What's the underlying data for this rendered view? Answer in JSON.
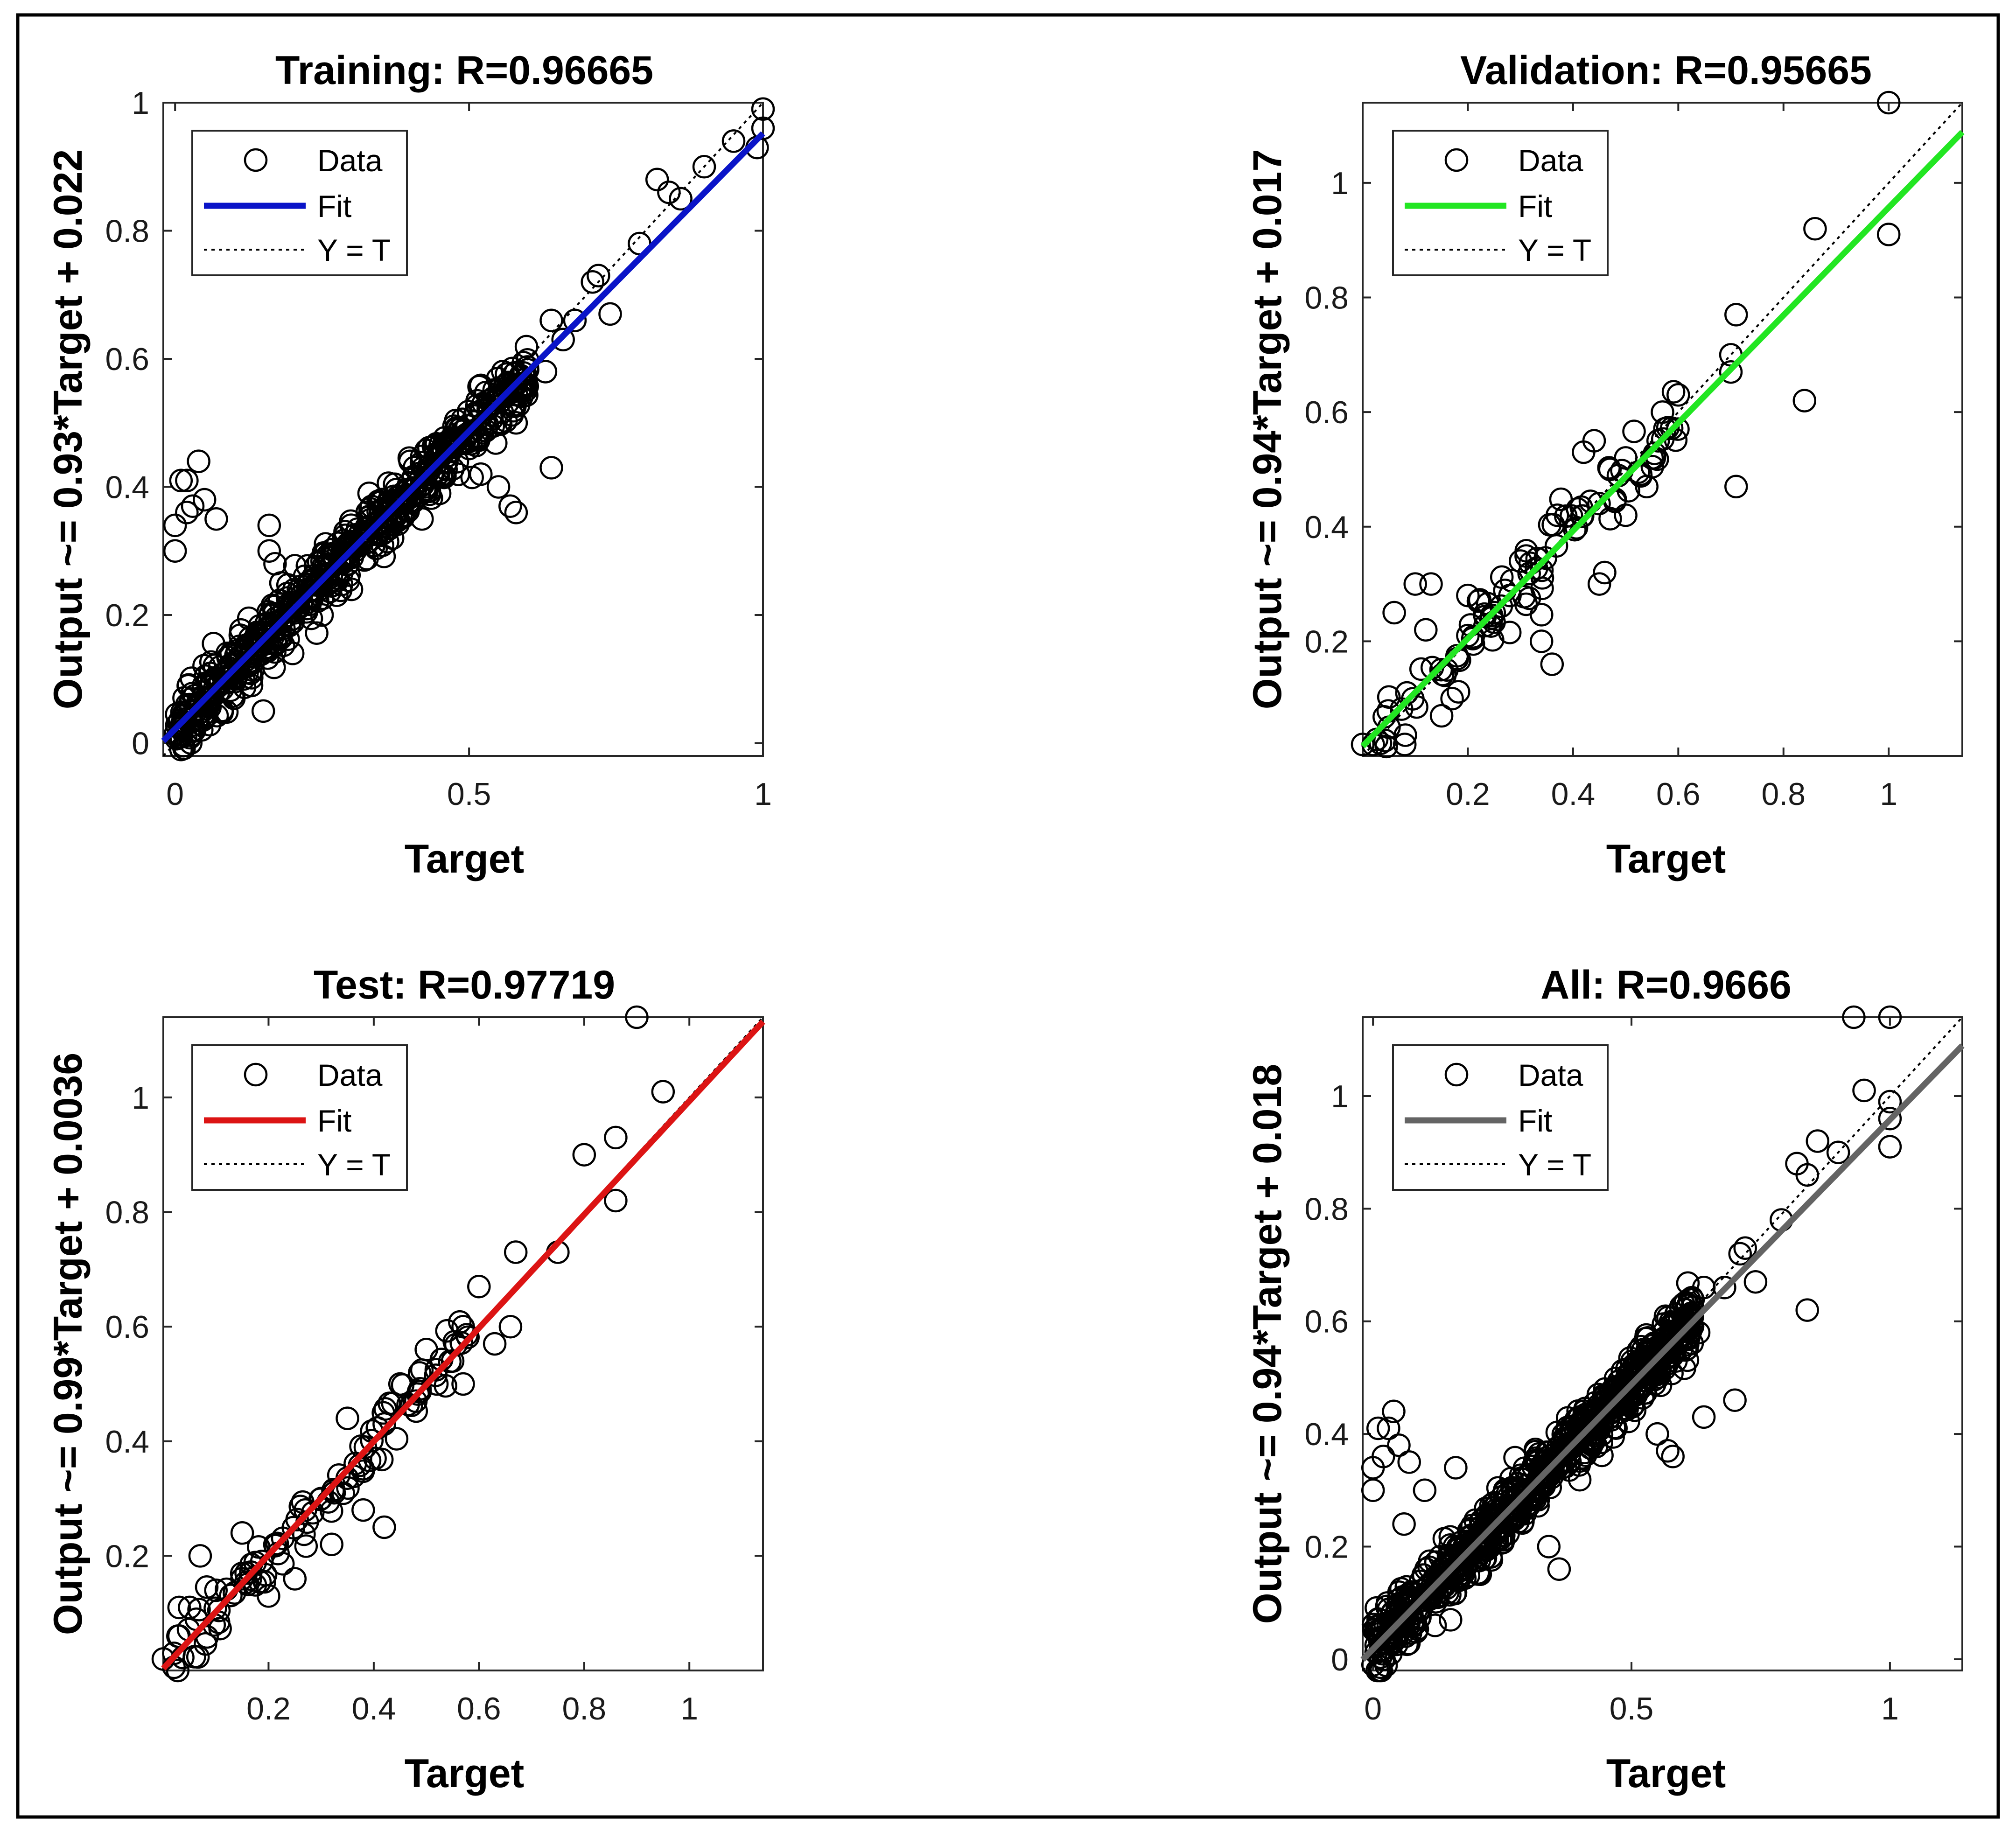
{
  "chart_data": [
    {
      "type": "scatter",
      "title": "Training: R=0.96665",
      "xlabel": "Target",
      "ylabel": "Output ~= 0.93*Target + 0.022",
      "xlim": [
        -0.02,
        1.0
      ],
      "ylim": [
        -0.02,
        1.0
      ],
      "xticks": [
        0,
        0.5,
        1
      ],
      "yticks": [
        0,
        0.2,
        0.4,
        0.6,
        0.8,
        1
      ],
      "tick_labels_x": [
        "0",
        "0.5",
        "1"
      ],
      "tick_labels_y": [
        "0",
        "0.2",
        "0.4",
        "0.6",
        "0.8",
        "1"
      ],
      "fit": {
        "slope": 0.93,
        "intercept": 0.022,
        "color": "#0a14c8"
      },
      "legend": {
        "data": "Data",
        "fit": "Fit",
        "ideal": "Y = T",
        "position": "top-left"
      },
      "cluster": {
        "count": 600,
        "x_range": [
          0.0,
          0.6
        ],
        "spread": 0.022
      },
      "points": [
        [
          0,
          0.3
        ],
        [
          0,
          0.34
        ],
        [
          0.01,
          0.41
        ],
        [
          0.02,
          0.36
        ],
        [
          0.02,
          0.41
        ],
        [
          0.03,
          0.37
        ],
        [
          0.04,
          0.44
        ],
        [
          0.05,
          0.38
        ],
        [
          0.07,
          0.35
        ],
        [
          0.16,
          0.34
        ],
        [
          0.55,
          0.4
        ],
        [
          0.57,
          0.37
        ],
        [
          0.58,
          0.36
        ],
        [
          0.64,
          0.43
        ],
        [
          0.58,
          0.5
        ],
        [
          0.63,
          0.58
        ],
        [
          0.64,
          0.66
        ],
        [
          0.66,
          0.63
        ],
        [
          0.68,
          0.66
        ],
        [
          0.71,
          0.72
        ],
        [
          0.72,
          0.73
        ],
        [
          0.74,
          0.67
        ],
        [
          0.79,
          0.78
        ],
        [
          0.82,
          0.88
        ],
        [
          0.84,
          0.86
        ],
        [
          0.86,
          0.85
        ],
        [
          0.9,
          0.9
        ],
        [
          0.95,
          0.94
        ],
        [
          0.99,
          0.93
        ],
        [
          1.0,
          0.99
        ],
        [
          1.0,
          0.96
        ],
        [
          0.01,
          -0.01
        ],
        [
          0.02,
          0.06
        ],
        [
          0.03,
          0.02
        ],
        [
          0.1,
          0.07
        ],
        [
          0.15,
          0.05
        ],
        [
          0.13,
          0.09
        ],
        [
          0.18,
          0.2
        ],
        [
          0.2,
          0.22
        ],
        [
          0.17,
          0.28
        ],
        [
          0.16,
          0.3
        ],
        [
          0.18,
          0.25
        ],
        [
          0.2,
          0.14
        ],
        [
          0.25,
          0.2
        ],
        [
          0.3,
          0.24
        ],
        [
          0.33,
          0.39
        ],
        [
          0.37,
          0.32
        ],
        [
          0.42,
          0.35
        ],
        [
          0.45,
          0.39
        ],
        [
          0.52,
          0.42
        ],
        [
          0.5,
          0.46
        ]
      ]
    },
    {
      "type": "scatter",
      "title": "Validation: R=0.95665",
      "xlabel": "Target",
      "ylabel": "Output ~= 0.94*Target + 0.017",
      "xlim": [
        0.0,
        1.14
      ],
      "ylim": [
        0.0,
        1.14
      ],
      "xticks": [
        0.2,
        0.4,
        0.6,
        0.8,
        1
      ],
      "yticks": [
        0.2,
        0.4,
        0.6,
        0.8,
        1
      ],
      "tick_labels_x": [
        "0.2",
        "0.4",
        "0.6",
        "0.8",
        "1"
      ],
      "tick_labels_y": [
        "0.2",
        "0.4",
        "0.6",
        "0.8",
        "1"
      ],
      "fit": {
        "slope": 0.94,
        "intercept": 0.017,
        "color": "#22e622"
      },
      "legend": {
        "data": "Data",
        "fit": "Fit",
        "ideal": "Y = T",
        "position": "top-left"
      },
      "cluster": {
        "count": 90,
        "x_range": [
          0.02,
          0.6
        ],
        "spread": 0.03
      },
      "points": [
        [
          0.0,
          0.02
        ],
        [
          0.02,
          0.02
        ],
        [
          0.05,
          0.05
        ],
        [
          0.06,
          0.25
        ],
        [
          0.08,
          0.02
        ],
        [
          0.1,
          0.3
        ],
        [
          0.12,
          0.22
        ],
        [
          0.13,
          0.3
        ],
        [
          0.15,
          0.07
        ],
        [
          0.17,
          0.1
        ],
        [
          0.2,
          0.28
        ],
        [
          0.22,
          0.27
        ],
        [
          0.25,
          0.25
        ],
        [
          0.34,
          0.2
        ],
        [
          0.36,
          0.16
        ],
        [
          0.37,
          0.42
        ],
        [
          0.42,
          0.53
        ],
        [
          0.44,
          0.55
        ],
        [
          0.45,
          0.3
        ],
        [
          0.46,
          0.32
        ],
        [
          0.5,
          0.42
        ],
        [
          0.54,
          0.47
        ],
        [
          0.57,
          0.6
        ],
        [
          0.6,
          0.63
        ],
        [
          0.7,
          0.7
        ],
        [
          0.71,
          0.77
        ],
        [
          0.7,
          0.67
        ],
        [
          0.71,
          0.47
        ],
        [
          0.84,
          0.62
        ],
        [
          0.86,
          0.92
        ],
        [
          1.0,
          0.91
        ],
        [
          1.0,
          1.14
        ],
        [
          0.47,
          0.5
        ],
        [
          0.5,
          0.52
        ],
        [
          0.55,
          0.52
        ],
        [
          0.3,
          0.34
        ],
        [
          0.28,
          0.28
        ],
        [
          0.2,
          0.21
        ],
        [
          0.18,
          0.17
        ],
        [
          0.16,
          0.15
        ]
      ]
    },
    {
      "type": "scatter",
      "title": "Test: R=0.97719",
      "xlabel": "Target",
      "ylabel": "Output ~= 0.99*Target + 0.0036",
      "xlim": [
        0.0,
        1.14
      ],
      "ylim": [
        0.0,
        1.14
      ],
      "xticks": [
        0.2,
        0.4,
        0.6,
        0.8,
        1
      ],
      "yticks": [
        0.2,
        0.4,
        0.6,
        0.8,
        1
      ],
      "tick_labels_x": [
        "0.2",
        "0.4",
        "0.6",
        "0.8",
        "1"
      ],
      "tick_labels_y": [
        "0.2",
        "0.4",
        "0.6",
        "0.8",
        "1"
      ],
      "fit": {
        "slope": 0.99,
        "intercept": 0.0036,
        "color": "#dc1414"
      },
      "legend": {
        "data": "Data",
        "fit": "Fit",
        "ideal": "Y = T",
        "position": "top-left"
      },
      "cluster": {
        "count": 100,
        "x_range": [
          0.0,
          0.58
        ],
        "spread": 0.025
      },
      "points": [
        [
          0.0,
          0.02
        ],
        [
          0.02,
          0.03
        ],
        [
          0.03,
          0.06
        ],
        [
          0.03,
          0.11
        ],
        [
          0.05,
          0.11
        ],
        [
          0.07,
          0.2
        ],
        [
          0.1,
          0.14
        ],
        [
          0.15,
          0.24
        ],
        [
          0.2,
          0.13
        ],
        [
          0.25,
          0.16
        ],
        [
          0.32,
          0.22
        ],
        [
          0.35,
          0.44
        ],
        [
          0.38,
          0.28
        ],
        [
          0.42,
          0.25
        ],
        [
          0.45,
          0.5
        ],
        [
          0.5,
          0.56
        ],
        [
          0.57,
          0.6
        ],
        [
          0.57,
          0.5
        ],
        [
          0.6,
          0.67
        ],
        [
          0.63,
          0.57
        ],
        [
          0.66,
          0.6
        ],
        [
          0.67,
          0.73
        ],
        [
          0.75,
          0.73
        ],
        [
          0.8,
          0.9
        ],
        [
          0.86,
          0.93
        ],
        [
          0.86,
          0.82
        ],
        [
          0.95,
          1.01
        ],
        [
          0.9,
          1.14
        ],
        [
          0.55,
          0.54
        ],
        [
          0.52,
          0.5
        ],
        [
          0.48,
          0.47
        ],
        [
          0.42,
          0.43
        ],
        [
          0.3,
          0.3
        ],
        [
          0.27,
          0.28
        ]
      ]
    },
    {
      "type": "scatter",
      "title": "All: R=0.9666",
      "xlabel": "Target",
      "ylabel": "Output ~= 0.94*Target + 0.018",
      "xlim": [
        -0.02,
        1.14
      ],
      "ylim": [
        -0.02,
        1.14
      ],
      "xticks": [
        0,
        0.5,
        1
      ],
      "yticks": [
        0,
        0.2,
        0.4,
        0.6,
        0.8,
        1
      ],
      "tick_labels_x": [
        "0",
        "0.5",
        "1"
      ],
      "tick_labels_y": [
        "0",
        "0.2",
        "0.4",
        "0.6",
        "0.8",
        "1"
      ],
      "fit": {
        "slope": 0.94,
        "intercept": 0.018,
        "color": "#646464"
      },
      "legend": {
        "data": "Data",
        "fit": "Fit",
        "ideal": "Y = T",
        "position": "top-left"
      },
      "cluster": {
        "count": 800,
        "x_range": [
          0.0,
          0.62
        ],
        "spread": 0.025
      },
      "points": [
        [
          0,
          0.3
        ],
        [
          0,
          0.34
        ],
        [
          0.01,
          0.41
        ],
        [
          0.02,
          0.36
        ],
        [
          0.03,
          0.41
        ],
        [
          0.04,
          0.44
        ],
        [
          0.05,
          0.38
        ],
        [
          0.07,
          0.35
        ],
        [
          0.06,
          0.24
        ],
        [
          0.1,
          0.3
        ],
        [
          0.16,
          0.34
        ],
        [
          0.55,
          0.4
        ],
        [
          0.57,
          0.37
        ],
        [
          0.58,
          0.36
        ],
        [
          0.64,
          0.43
        ],
        [
          0.7,
          0.46
        ],
        [
          0.63,
          0.58
        ],
        [
          0.64,
          0.66
        ],
        [
          0.68,
          0.66
        ],
        [
          0.71,
          0.72
        ],
        [
          0.72,
          0.73
        ],
        [
          0.74,
          0.67
        ],
        [
          0.79,
          0.78
        ],
        [
          0.84,
          0.62
        ],
        [
          0.82,
          0.88
        ],
        [
          0.84,
          0.86
        ],
        [
          0.86,
          0.92
        ],
        [
          0.9,
          0.9
        ],
        [
          0.93,
          1.14
        ],
        [
          0.95,
          1.01
        ],
        [
          1.0,
          0.91
        ],
        [
          1.0,
          0.96
        ],
        [
          1.0,
          0.99
        ],
        [
          1.0,
          1.14
        ],
        [
          0.36,
          0.16
        ],
        [
          0.34,
          0.2
        ],
        [
          0.15,
          0.07
        ],
        [
          0.12,
          0.06
        ],
        [
          0.02,
          0.0
        ],
        [
          0.0,
          -0.01
        ],
        [
          0.01,
          0.05
        ]
      ]
    }
  ]
}
